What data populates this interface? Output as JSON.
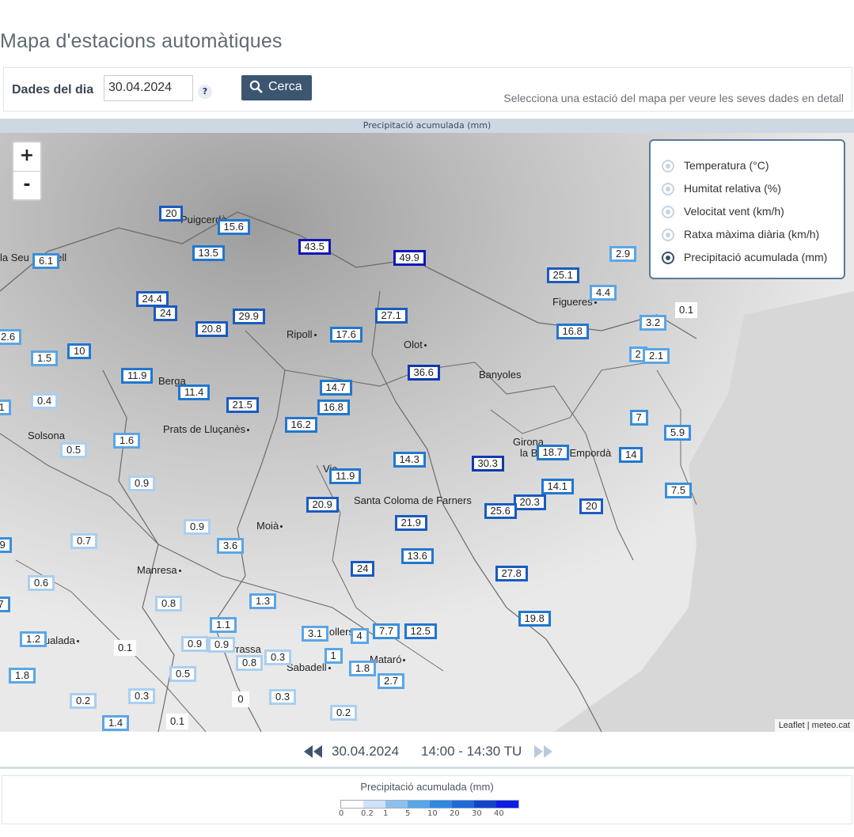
{
  "page": {
    "title": "Mapa d'estacions automàtiques"
  },
  "toolbar": {
    "date_label": "Dades del dia",
    "date_value": "30.04.2024",
    "help": "?",
    "search_label": "Cerca",
    "hint": "Selecciona una estació del mapa per veure les seves dades en detall"
  },
  "map": {
    "header": "Precipitació acumulada (mm)",
    "zoom_in": "+",
    "zoom_out": "-",
    "attribution": "Leaflet | meteo.cat",
    "variables": [
      {
        "label": "Temperatura (°C)",
        "selected": false
      },
      {
        "label": "Humitat relativa (%)",
        "selected": false
      },
      {
        "label": "Velocitat vent (km/h)",
        "selected": false
      },
      {
        "label": "Ratxa màxima diària (km/h)",
        "selected": false
      },
      {
        "label": "Precipitació acumulada (mm)",
        "selected": true
      }
    ],
    "towns": [
      "Puigcerdà",
      "Ripoll",
      "Olot",
      "Figueres",
      "Berga",
      "Banyoles",
      "Solsona",
      "Prats de Lluçanès",
      "Girona",
      "la Bisbal d'Empordà",
      "Vic",
      "Santa Coloma de Farners",
      "Moià",
      "Manresa",
      "Igualada",
      "Granollers",
      "Terrassa",
      "Sabadell",
      "Mataró",
      "la Seu d'Urgell"
    ],
    "stations": [
      {
        "v": "20"
      },
      {
        "v": "15.6"
      },
      {
        "v": "13.5"
      },
      {
        "v": "43.5"
      },
      {
        "v": "49.9"
      },
      {
        "v": "6.1"
      },
      {
        "v": "24.4"
      },
      {
        "v": "24"
      },
      {
        "v": "20.8"
      },
      {
        "v": "29.9"
      },
      {
        "v": "17.6"
      },
      {
        "v": "27.1"
      },
      {
        "v": "25.1"
      },
      {
        "v": "2.9"
      },
      {
        "v": "4.4"
      },
      {
        "v": "0.1"
      },
      {
        "v": "3.2"
      },
      {
        "v": "16.8"
      },
      {
        "v": "2"
      },
      {
        "v": "2.1"
      },
      {
        "v": "2.6"
      },
      {
        "v": "1.5"
      },
      {
        "v": "10"
      },
      {
        "v": "11.9"
      },
      {
        "v": "11.4"
      },
      {
        "v": "36.6"
      },
      {
        "v": "0.4"
      },
      {
        "v": "1"
      },
      {
        "v": "21.5"
      },
      {
        "v": "14.7"
      },
      {
        "v": "16.8"
      },
      {
        "v": "16.2"
      },
      {
        "v": "1.6"
      },
      {
        "v": "0.5"
      },
      {
        "v": "14.3"
      },
      {
        "v": "30.3"
      },
      {
        "v": "18.7"
      },
      {
        "v": "7"
      },
      {
        "v": "5.9"
      },
      {
        "v": "14"
      },
      {
        "v": "0.9"
      },
      {
        "v": "11.9"
      },
      {
        "v": "14.1"
      },
      {
        "v": "7.5"
      },
      {
        "v": "20.9"
      },
      {
        "v": "20.3"
      },
      {
        "v": "25.6"
      },
      {
        "v": "20"
      },
      {
        "v": "21.9"
      },
      {
        "v": "0.9"
      },
      {
        "v": "9"
      },
      {
        "v": "0.7"
      },
      {
        "v": "3.6"
      },
      {
        "v": "13.6"
      },
      {
        "v": "24"
      },
      {
        "v": "27.8"
      },
      {
        "v": "0.6"
      },
      {
        "v": "7"
      },
      {
        "v": "0.8"
      },
      {
        "v": "1.3"
      },
      {
        "v": "19.8"
      },
      {
        "v": "1.1"
      },
      {
        "v": "3.1"
      },
      {
        "v": "4"
      },
      {
        "v": "7.7"
      },
      {
        "v": "12.5"
      },
      {
        "v": "1.2"
      },
      {
        "v": "0.1"
      },
      {
        "v": "0.9"
      },
      {
        "v": "0.9"
      },
      {
        "v": "0.8"
      },
      {
        "v": "0.3"
      },
      {
        "v": "1"
      },
      {
        "v": "1.8"
      },
      {
        "v": "1.8"
      },
      {
        "v": "0.5"
      },
      {
        "v": "2.7"
      },
      {
        "v": "0.2"
      },
      {
        "v": "0.3"
      },
      {
        "v": "0"
      },
      {
        "v": "0.3"
      },
      {
        "v": "1.4"
      },
      {
        "v": "0.1"
      },
      {
        "v": "0.2"
      }
    ]
  },
  "timebar": {
    "date": "30.04.2024",
    "range": "14:00 - 14:30 TU"
  },
  "scale": {
    "title": "Precipitació acumulada (mm)",
    "thresholds": [
      "0",
      "0.2",
      "1",
      "5",
      "10",
      "20",
      "30",
      "40"
    ],
    "colors": [
      "#ffffff",
      "#cfe3f7",
      "#8cc1ee",
      "#57a6e6",
      "#2e8ae0",
      "#1d6ad8",
      "#1144cc",
      "#0a1ee6"
    ]
  }
}
